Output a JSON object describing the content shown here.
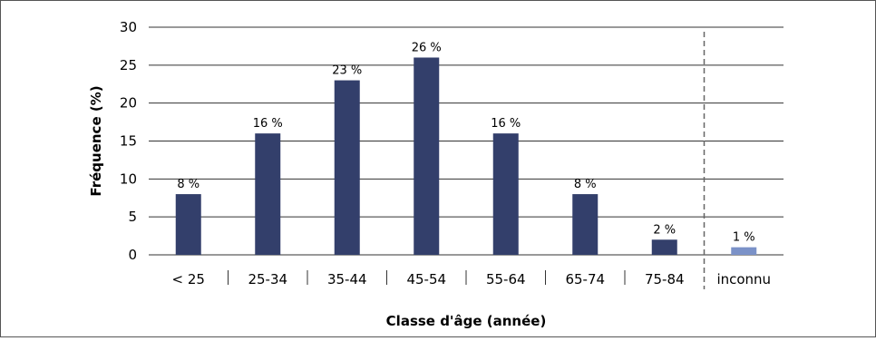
{
  "chart_data": {
    "type": "bar",
    "title": "",
    "xlabel": "Classe d'âge (année)",
    "ylabel": "Fréquence (%)",
    "ylim": [
      0,
      30
    ],
    "yticks": [
      0,
      5,
      10,
      15,
      20,
      25,
      30
    ],
    "grid": true,
    "categories": [
      "< 25",
      "25-34",
      "35-44",
      "45-54",
      "55-64",
      "65-74",
      "75-84",
      "inconnu"
    ],
    "values": [
      8,
      16,
      23,
      26,
      16,
      8,
      2,
      1
    ],
    "data_labels": [
      "8 %",
      "16 %",
      "23 %",
      "26 %",
      "16 %",
      "8 %",
      "2 %",
      "1 %"
    ],
    "colors": {
      "main": "#333f6b",
      "unknown": "#7b92c8",
      "grid": "#333333",
      "separator": "#666666"
    }
  }
}
